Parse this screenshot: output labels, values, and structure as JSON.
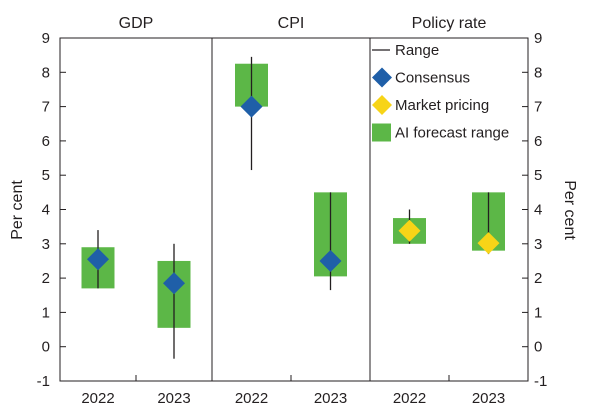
{
  "chart_data": {
    "type": "range",
    "ylabel_left": "Per cent",
    "ylabel_right": "Per cent",
    "ylim": [
      -1,
      9
    ],
    "yticks": [
      -1,
      0,
      1,
      2,
      3,
      4,
      5,
      6,
      7,
      8,
      9
    ],
    "panels": [
      {
        "title": "GDP",
        "categories": [
          "2022",
          "2023"
        ],
        "points": [
          {
            "year": "2022",
            "range": [
              1.7,
              3.4
            ],
            "ai_forecast_range": [
              1.7,
              2.9
            ],
            "consensus": 2.55
          },
          {
            "year": "2023",
            "range": [
              -0.35,
              3.0
            ],
            "ai_forecast_range": [
              0.55,
              2.5
            ],
            "consensus": 1.85
          }
        ]
      },
      {
        "title": "CPI",
        "categories": [
          "2022",
          "2023"
        ],
        "points": [
          {
            "year": "2022",
            "range": [
              5.15,
              8.45
            ],
            "ai_forecast_range": [
              7.0,
              8.25
            ],
            "consensus": 7.0
          },
          {
            "year": "2023",
            "range": [
              1.65,
              4.5
            ],
            "ai_forecast_range": [
              2.05,
              4.5
            ],
            "consensus": 2.5
          }
        ]
      },
      {
        "title": "Policy rate",
        "categories": [
          "2022",
          "2023"
        ],
        "points": [
          {
            "year": "2022",
            "range": [
              3.0,
              4.0
            ],
            "ai_forecast_range": [
              3.0,
              3.75
            ],
            "market_pricing": 3.38
          },
          {
            "year": "2023",
            "range": [
              2.7,
              4.5
            ],
            "ai_forecast_range": [
              2.8,
              4.5
            ],
            "market_pricing": 3.02
          }
        ]
      }
    ],
    "legend": [
      {
        "key": "range",
        "label": "Range"
      },
      {
        "key": "consensus",
        "label": "Consensus"
      },
      {
        "key": "market_pricing",
        "label": "Market pricing"
      },
      {
        "key": "ai_forecast_range",
        "label": "AI forecast range"
      }
    ],
    "colors": {
      "range": "#231f20",
      "consensus": "#1f5fa8",
      "market_pricing": "#f7d417",
      "ai_forecast_range": "#5cb747",
      "frame": "#231f20",
      "text": "#231f20"
    }
  }
}
